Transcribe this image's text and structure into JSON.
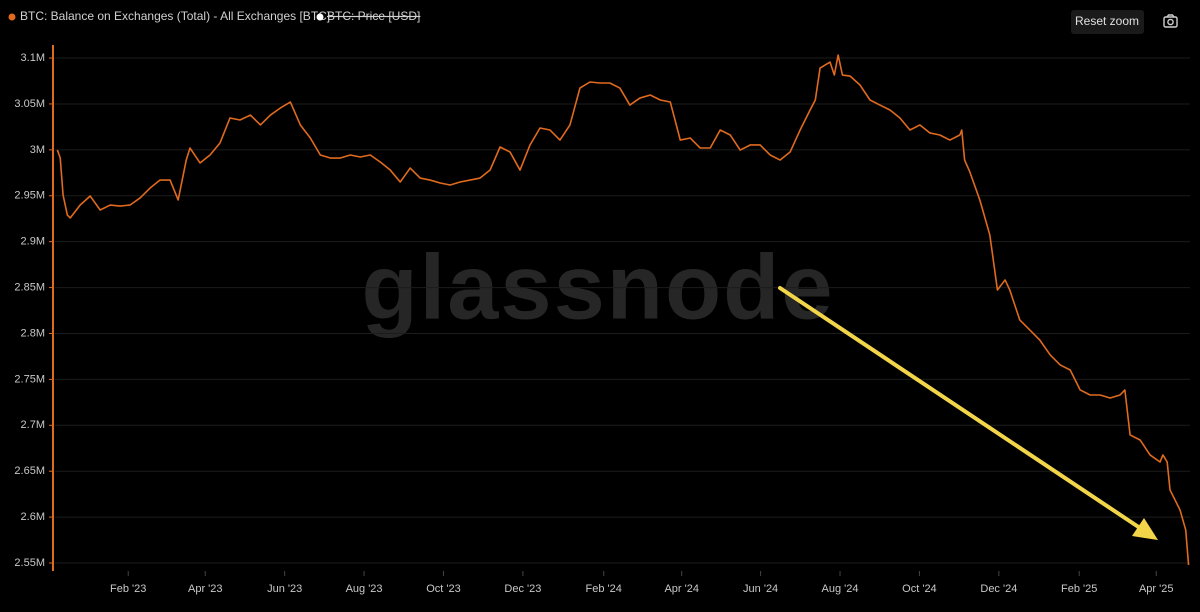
{
  "chart_data": {
    "type": "line",
    "watermark": "glassnode",
    "grid": true,
    "xlim": [
      2022.931,
      2025.318
    ],
    "ylim": [
      2541300,
      3114200
    ],
    "xticks": [
      {
        "value": 2023.085,
        "label": "Feb '23"
      },
      {
        "value": 2023.247,
        "label": "Apr '23"
      },
      {
        "value": 2023.414,
        "label": "Jun '23"
      },
      {
        "value": 2023.581,
        "label": "Aug '23"
      },
      {
        "value": 2023.748,
        "label": "Oct '23"
      },
      {
        "value": 2023.915,
        "label": "Dec '23"
      },
      {
        "value": 2024.085,
        "label": "Feb '24"
      },
      {
        "value": 2024.249,
        "label": "Apr '24"
      },
      {
        "value": 2024.415,
        "label": "Jun '24"
      },
      {
        "value": 2024.582,
        "label": "Aug '24"
      },
      {
        "value": 2024.749,
        "label": "Oct '24"
      },
      {
        "value": 2024.916,
        "label": "Dec '24"
      },
      {
        "value": 2025.085,
        "label": "Feb '25"
      },
      {
        "value": 2025.247,
        "label": "Apr '25"
      }
    ],
    "yticks": [
      {
        "value": 3100000,
        "label": "3.1M"
      },
      {
        "value": 3050000,
        "label": "3.05M"
      },
      {
        "value": 3000000,
        "label": "3M"
      },
      {
        "value": 2950000,
        "label": "2.95M"
      },
      {
        "value": 2900000,
        "label": "2.9M"
      },
      {
        "value": 2850000,
        "label": "2.85M"
      },
      {
        "value": 2800000,
        "label": "2.8M"
      },
      {
        "value": 2750000,
        "label": "2.75M"
      },
      {
        "value": 2700000,
        "label": "2.7M"
      },
      {
        "value": 2650000,
        "label": "2.65M"
      },
      {
        "value": 2600000,
        "label": "2.6M"
      },
      {
        "value": 2550000,
        "label": "2.55M"
      }
    ],
    "x": [
      2022.936,
      2022.942,
      2022.948,
      2022.957,
      2022.963,
      2022.984,
      2023.005,
      2023.026,
      2023.047,
      2023.068,
      2023.089,
      2023.11,
      2023.131,
      2023.152,
      2023.173,
      2023.19,
      2023.207,
      2023.215,
      2023.236,
      2023.257,
      2023.278,
      2023.299,
      2023.32,
      2023.342,
      2023.363,
      2023.384,
      2023.405,
      2023.426,
      2023.447,
      2023.468,
      2023.489,
      2023.51,
      2023.531,
      2023.552,
      2023.573,
      2023.594,
      2023.615,
      2023.636,
      2023.657,
      2023.678,
      2023.699,
      2023.72,
      2023.741,
      2023.762,
      2023.783,
      2023.804,
      2023.825,
      2023.846,
      2023.867,
      2023.888,
      2023.909,
      2023.93,
      2023.951,
      2023.972,
      2023.993,
      2024.014,
      2024.035,
      2024.056,
      2024.077,
      2024.098,
      2024.119,
      2024.14,
      2024.161,
      2024.183,
      2024.204,
      2024.225,
      2024.246,
      2024.267,
      2024.288,
      2024.309,
      2024.33,
      2024.351,
      2024.372,
      2024.393,
      2024.414,
      2024.435,
      2024.456,
      2024.477,
      2024.498,
      2024.519,
      2024.53,
      2024.54,
      2024.561,
      2024.57,
      2024.578,
      2024.587,
      2024.603,
      2024.624,
      2024.645,
      2024.666,
      2024.687,
      2024.708,
      2024.729,
      2024.75,
      2024.771,
      2024.792,
      2024.813,
      2024.834,
      2024.838,
      2024.844,
      2024.855,
      2024.876,
      2024.897,
      2024.913,
      2024.929,
      2024.939,
      2024.96,
      2024.981,
      2025.002,
      2025.024,
      2025.045,
      2025.066,
      2025.087,
      2025.108,
      2025.129,
      2025.15,
      2025.171,
      2025.181,
      2025.192,
      2025.213,
      2025.234,
      2025.255,
      2025.261,
      2025.27,
      2025.276,
      2025.297,
      2025.309,
      2025.315
    ],
    "series": [
      {
        "name": "BTC: Balance on Exchanges (Total) - All Exchanges [BTC]",
        "color": "#e06a1e",
        "values": [
          2999800,
          2991100,
          2950800,
          2929000,
          2925800,
          2939900,
          2949700,
          2934500,
          2939900,
          2938800,
          2939900,
          2947600,
          2958400,
          2967100,
          2967100,
          2945400,
          2988900,
          3002000,
          2985700,
          2994400,
          3007500,
          3034700,
          3032500,
          3037900,
          3027100,
          3037900,
          3045600,
          3052100,
          3027100,
          3012900,
          2994400,
          2991100,
          2991100,
          2994400,
          2992200,
          2994400,
          2986800,
          2978000,
          2965000,
          2980200,
          2969300,
          2967100,
          2963900,
          2961700,
          2965000,
          2967100,
          2969300,
          2978000,
          3003100,
          2997600,
          2978000,
          3005300,
          3023800,
          3021600,
          3010700,
          3027100,
          3067300,
          3073900,
          3072800,
          3072800,
          3067300,
          3048800,
          3056400,
          3059700,
          3054300,
          3052100,
          3010700,
          3012900,
          3002000,
          3002000,
          3021600,
          3016200,
          2999800,
          3005300,
          3005300,
          2994400,
          2988900,
          2997600,
          3021600,
          3043400,
          3054300,
          3089100,
          3095600,
          3081500,
          3103300,
          3081500,
          3080400,
          3070600,
          3054300,
          3048800,
          3043400,
          3034700,
          3021600,
          3027100,
          3018400,
          3016200,
          3010700,
          3016200,
          3021600,
          2988900,
          2975900,
          2945400,
          2907300,
          2847400,
          2858300,
          2847400,
          2814700,
          2803800,
          2792900,
          2776600,
          2765700,
          2760200,
          2738500,
          2733000,
          2733000,
          2729700,
          2733000,
          2738500,
          2689500,
          2684000,
          2667700,
          2660000,
          2667700,
          2660000,
          2629600,
          2607800,
          2586000,
          2547900
        ]
      }
    ],
    "hidden_series": {
      "name": "BTC: Price [USD]",
      "color": "#ffffff"
    }
  },
  "ui": {
    "reset_zoom": "Reset zoom"
  }
}
